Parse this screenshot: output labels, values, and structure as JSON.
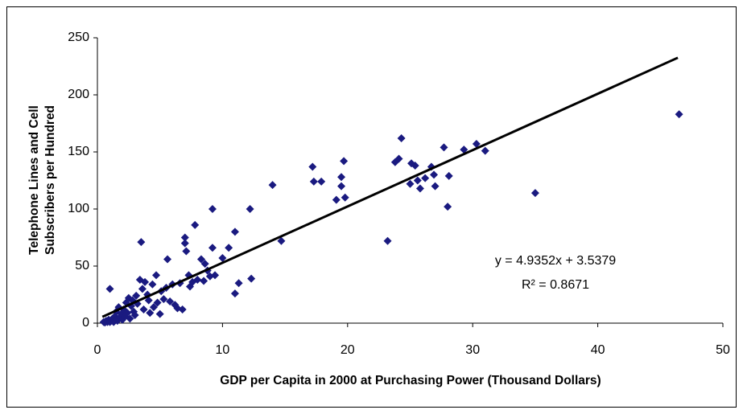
{
  "chart_data": {
    "type": "scatter",
    "x_label": "GDP per Capita in 2000 at Purchasing Power (Thousand Dollars)",
    "y_label": [
      "Telephone Lines and Cell",
      "Subscribers per Hundred"
    ],
    "annotations": [
      "y = 4.9352x + 3.5379",
      "R² = 0.8671"
    ],
    "color": "#1a1a80",
    "grid": false,
    "xlim": [
      0,
      50
    ],
    "xticks": [
      0,
      10,
      20,
      30,
      40,
      50
    ],
    "ylim": [
      0,
      250
    ],
    "yticks": [
      0,
      50,
      100,
      150,
      200,
      250
    ],
    "trendline": {
      "slope": 4.9352,
      "intercept": 3.5379,
      "x_range": [
        0.4,
        46.4
      ],
      "color": "#000000"
    },
    "x": [
      0.5,
      0.6,
      0.7,
      0.8,
      0.9,
      1.0,
      1.0,
      1.1,
      1.2,
      1.3,
      1.4,
      1.5,
      1.5,
      1.6,
      1.7,
      1.8,
      1.9,
      2.0,
      2.1,
      2.2,
      2.3,
      2.4,
      2.5,
      2.6,
      2.7,
      2.8,
      2.9,
      3.0,
      3.1,
      3.2,
      3.4,
      3.5,
      3.6,
      3.7,
      3.8,
      4.0,
      4.1,
      4.2,
      4.4,
      4.5,
      4.7,
      4.8,
      5.0,
      5.1,
      5.3,
      5.5,
      5.6,
      5.8,
      6.0,
      6.2,
      6.4,
      6.6,
      6.8,
      7.0,
      7.0,
      7.1,
      7.3,
      7.4,
      7.6,
      7.8,
      8.0,
      8.3,
      8.5,
      8.6,
      8.8,
      9.0,
      9.2,
      9.2,
      9.4,
      10.0,
      10.5,
      11.0,
      11.0,
      11.3,
      12.2,
      12.3,
      14.0,
      14.7,
      17.2,
      17.3,
      17.9,
      19.1,
      19.5,
      19.5,
      19.7,
      19.8,
      23.2,
      23.8,
      24.1,
      24.3,
      25.0,
      25.1,
      25.4,
      25.6,
      25.8,
      26.2,
      26.7,
      26.9,
      27.0,
      27.7,
      28.0,
      28.1,
      29.3,
      30.3,
      31.0,
      35.0,
      46.5
    ],
    "values": [
      1,
      0.5,
      2,
      1,
      3,
      1,
      30,
      2,
      4,
      1,
      6,
      3,
      10,
      2,
      14,
      5,
      8,
      3,
      12,
      6,
      18,
      9,
      22,
      4,
      15,
      20,
      10,
      7,
      24,
      17,
      38,
      71,
      30,
      12,
      36,
      25,
      20,
      9,
      34,
      14,
      42,
      18,
      8,
      28,
      21,
      31,
      56,
      19,
      34,
      16,
      13,
      35,
      12,
      75,
      70,
      63,
      42,
      32,
      36,
      86,
      38,
      56,
      37,
      52,
      46,
      41,
      100,
      66,
      42,
      57,
      66,
      80,
      26,
      35,
      100,
      39,
      121,
      72,
      137,
      124,
      124,
      108,
      120,
      128,
      142,
      110,
      72,
      141,
      144,
      162,
      122,
      140,
      138,
      125,
      118,
      127,
      137,
      130,
      120,
      154,
      102,
      129,
      152,
      157,
      151,
      114,
      183
    ]
  }
}
